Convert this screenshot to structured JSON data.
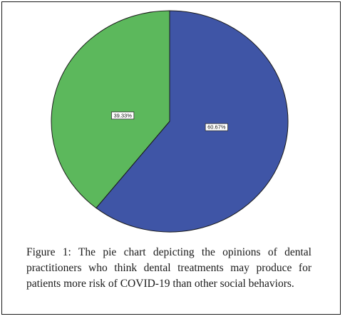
{
  "chart_data": {
    "type": "pie",
    "slices": [
      {
        "label": "60.67%",
        "value": 60.67,
        "color": "#3f55a6"
      },
      {
        "label": "39.33%",
        "value": 39.33,
        "color": "#5cb85c"
      }
    ],
    "start_angle_deg": 0,
    "direction": "clockwise"
  },
  "caption": "Figure 1: The pie chart depicting the opinions of dental practitioners who think dental treatments may produce for patients more risk of COVID-19 than other social behaviors."
}
